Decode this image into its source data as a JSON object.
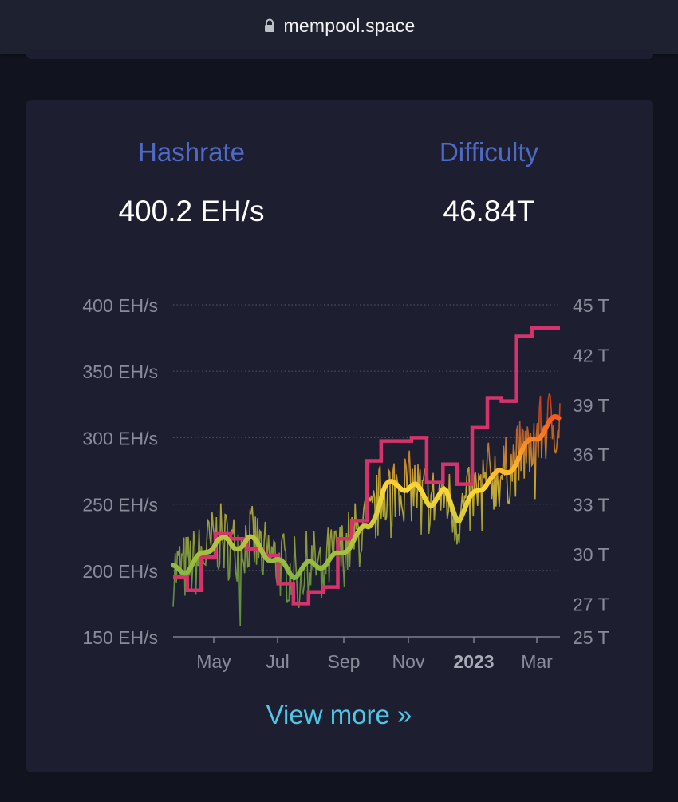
{
  "browser": {
    "url": "mempool.space",
    "lock_icon": "lock-icon"
  },
  "stats": {
    "hashrate": {
      "label": "Hashrate",
      "value": "400.2 EH/s"
    },
    "difficulty": {
      "label": "Difficulty",
      "value": "46.84T"
    }
  },
  "colors": {
    "background": "#11131f",
    "card": "#1d1f31",
    "label_blue": "#4f6ac6",
    "link": "#4fc6e8",
    "difficulty_line": "#d6336c",
    "hashrate_low": "#7cb342",
    "hashrate_mid": "#fdd835",
    "hashrate_high": "#f4511e"
  },
  "chart_data": {
    "type": "line",
    "x_ticks": [
      "May",
      "Jul",
      "Sep",
      "Nov",
      "2023",
      "Mar"
    ],
    "y_left_ticks": [
      "400 EH/s",
      "350 EH/s",
      "300 EH/s",
      "250 EH/s",
      "200 EH/s",
      "150 EH/s"
    ],
    "y_right_ticks": [
      "45 T",
      "42 T",
      "39 T",
      "36 T",
      "33 T",
      "30 T",
      "27 T",
      "25 T"
    ],
    "ylim_left": [
      150,
      400
    ],
    "ylim_right": [
      25,
      45
    ],
    "x_range": [
      "2022-04-01",
      "2023-03-24"
    ],
    "grid": true,
    "series": [
      {
        "axis": "right",
        "values": [
          [
            "2022-04-01",
            28.6
          ],
          [
            "2022-04-14",
            28.6
          ],
          [
            "2022-04-14",
            27.8
          ],
          [
            "2022-04-27",
            27.8
          ],
          [
            "2022-04-27",
            29.8
          ],
          [
            "2022-05-10",
            29.8
          ],
          [
            "2022-05-10",
            31.2
          ],
          [
            "2022-05-24",
            31.2
          ],
          [
            "2022-05-24",
            30.9
          ],
          [
            "2022-06-08",
            30.9
          ],
          [
            "2022-06-08",
            30.3
          ],
          [
            "2022-06-23",
            30.3
          ],
          [
            "2022-06-23",
            29.9
          ],
          [
            "2022-07-07",
            29.9
          ],
          [
            "2022-07-07",
            28.2
          ],
          [
            "2022-07-21",
            28.2
          ],
          [
            "2022-07-21",
            27.0
          ],
          [
            "2022-08-04",
            27.0
          ],
          [
            "2022-08-04",
            27.7
          ],
          [
            "2022-08-18",
            27.7
          ],
          [
            "2022-08-18",
            28.0
          ],
          [
            "2022-08-31",
            28.0
          ],
          [
            "2022-08-31",
            30.9
          ],
          [
            "2022-09-13",
            30.9
          ],
          [
            "2022-09-13",
            32.0
          ],
          [
            "2022-09-27",
            32.0
          ],
          [
            "2022-09-27",
            35.6
          ],
          [
            "2022-10-10",
            35.6
          ],
          [
            "2022-10-10",
            36.8
          ],
          [
            "2022-10-24",
            36.8
          ],
          [
            "2022-10-24",
            36.8
          ],
          [
            "2022-11-07",
            36.8
          ],
          [
            "2022-11-07",
            37.0
          ],
          [
            "2022-11-21",
            37.0
          ],
          [
            "2022-11-21",
            34.3
          ],
          [
            "2022-12-06",
            34.3
          ],
          [
            "2022-12-06",
            35.4
          ],
          [
            "2022-12-19",
            35.4
          ],
          [
            "2022-12-19",
            34.2
          ],
          [
            "2023-01-02",
            34.2
          ],
          [
            "2023-01-02",
            37.6
          ],
          [
            "2023-01-16",
            37.6
          ],
          [
            "2023-01-16",
            39.4
          ],
          [
            "2023-01-29",
            39.4
          ],
          [
            "2023-01-29",
            39.2
          ],
          [
            "2023-02-12",
            39.2
          ],
          [
            "2023-02-12",
            43.1
          ],
          [
            "2023-02-26",
            43.1
          ],
          [
            "2023-02-26",
            43.6
          ],
          [
            "2023-03-24",
            43.6
          ]
        ]
      },
      {
        "axis": "left",
        "values": [
          [
            "2022-04-01",
            200
          ],
          [
            "2022-04-14",
            202
          ],
          [
            "2022-04-28",
            210
          ],
          [
            "2022-05-12",
            225
          ],
          [
            "2022-05-26",
            217
          ],
          [
            "2022-06-09",
            224
          ],
          [
            "2022-06-23",
            215
          ],
          [
            "2022-07-07",
            205
          ],
          [
            "2022-07-21",
            198
          ],
          [
            "2022-08-04",
            203
          ],
          [
            "2022-08-18",
            206
          ],
          [
            "2022-09-01",
            210
          ],
          [
            "2022-09-15",
            225
          ],
          [
            "2022-09-29",
            232
          ],
          [
            "2022-10-13",
            262
          ],
          [
            "2022-10-27",
            265
          ],
          [
            "2022-11-10",
            262
          ],
          [
            "2022-11-24",
            252
          ],
          [
            "2022-12-08",
            258
          ],
          [
            "2022-12-20",
            240
          ],
          [
            "2023-01-03",
            255
          ],
          [
            "2023-01-17",
            270
          ],
          [
            "2023-01-31",
            272
          ],
          [
            "2023-02-14",
            285
          ],
          [
            "2023-02-28",
            300
          ],
          [
            "2023-03-14",
            310
          ],
          [
            "2023-03-24",
            314
          ]
        ]
      }
    ]
  },
  "link": {
    "label": "View more »"
  }
}
